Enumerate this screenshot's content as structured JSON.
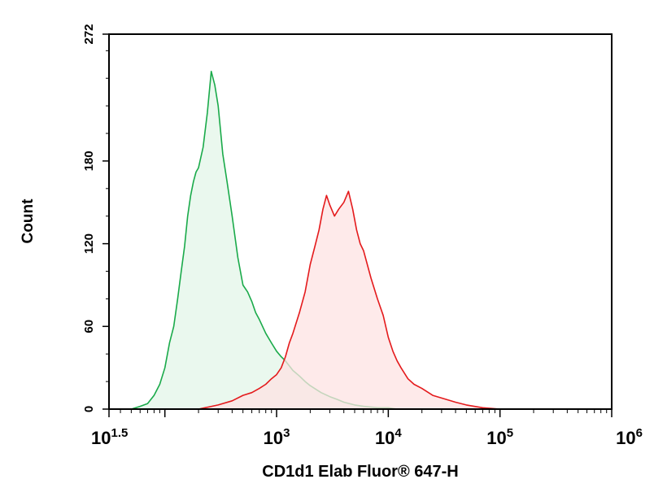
{
  "chart_data": {
    "type": "area",
    "title": "",
    "xlabel": "CD1d1 Elab Fluor® 647-H",
    "ylabel": "Count",
    "x_scale": "log",
    "xlim": [
      31.6,
      1000000
    ],
    "ylim": [
      0,
      272
    ],
    "x_ticks": [
      {
        "value": 31.6,
        "base": "10",
        "exp": "1.5"
      },
      {
        "value": 1000,
        "base": "10",
        "exp": "3"
      },
      {
        "value": 10000,
        "base": "10",
        "exp": "4"
      },
      {
        "value": 100000,
        "base": "10",
        "exp": "5"
      },
      {
        "value": 1000000,
        "base": "10",
        "exp": "6"
      }
    ],
    "y_ticks": [
      0,
      60,
      120,
      180,
      272
    ],
    "grid": false,
    "series": [
      {
        "color": "#1aaa4a",
        "fill": "#e3f5e8",
        "x": [
          50,
          60,
          70,
          80,
          90,
          100,
          110,
          120,
          130,
          140,
          150,
          160,
          170,
          180,
          190,
          200,
          220,
          240,
          260,
          280,
          300,
          330,
          360,
          400,
          450,
          500,
          550,
          600,
          650,
          700,
          800,
          900,
          1000,
          1100,
          1200,
          1400,
          1600,
          1800,
          2000,
          2500,
          3000,
          3500,
          4000,
          5000,
          6000,
          8000,
          10000,
          12000,
          15000
        ],
        "y": [
          0,
          2,
          4,
          10,
          18,
          30,
          48,
          60,
          80,
          100,
          118,
          140,
          155,
          165,
          172,
          175,
          190,
          215,
          245,
          235,
          220,
          185,
          165,
          140,
          110,
          90,
          85,
          78,
          70,
          65,
          55,
          48,
          42,
          38,
          35,
          28,
          24,
          20,
          17,
          12,
          9,
          7,
          5,
          3,
          2,
          1,
          1,
          0,
          0
        ]
      },
      {
        "color": "#e41a1c",
        "fill": "#fde3e3",
        "x": [
          200,
          300,
          400,
          500,
          600,
          700,
          800,
          900,
          1000,
          1100,
          1200,
          1300,
          1400,
          1600,
          1800,
          2000,
          2200,
          2400,
          2600,
          2800,
          3000,
          3300,
          3600,
          4000,
          4400,
          4800,
          5200,
          5600,
          6000,
          7000,
          8000,
          9000,
          10000,
          11000,
          12000,
          13000,
          15000,
          17000,
          20000,
          25000,
          30000,
          40000,
          50000,
          70000,
          100000
        ],
        "y": [
          0,
          3,
          6,
          10,
          12,
          15,
          18,
          22,
          25,
          30,
          38,
          48,
          55,
          70,
          85,
          105,
          118,
          130,
          145,
          155,
          148,
          140,
          145,
          150,
          158,
          145,
          130,
          120,
          115,
          95,
          80,
          68,
          52,
          42,
          35,
          30,
          22,
          18,
          15,
          10,
          8,
          5,
          3,
          1,
          0
        ]
      }
    ]
  }
}
